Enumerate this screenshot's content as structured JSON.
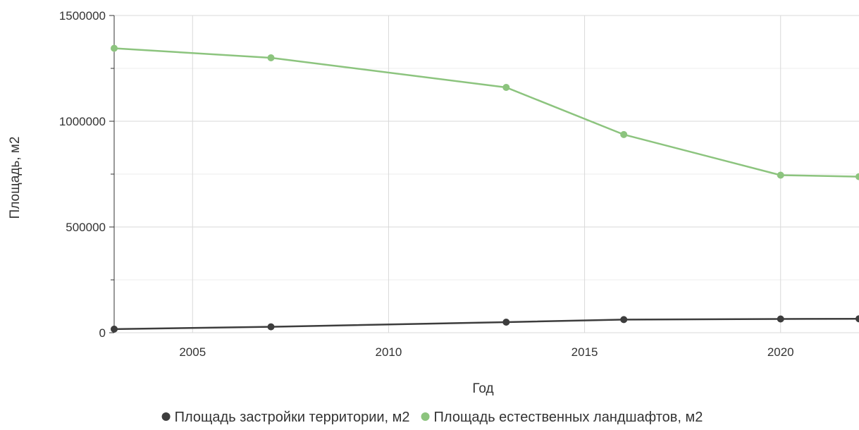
{
  "chart_data": {
    "type": "line",
    "xlabel": "Год",
    "ylabel": "Площадь, м2",
    "xlim": [
      2003,
      2022
    ],
    "ylim": [
      0,
      1500000
    ],
    "x_ticks": [
      2005,
      2010,
      2015,
      2020
    ],
    "y_ticks": [
      0,
      500000,
      1000000,
      1500000
    ],
    "x_tick_labels": [
      "2005",
      "2010",
      "2015",
      "2020"
    ],
    "y_tick_labels": [
      "0",
      "500000",
      "1000000",
      "1500000"
    ],
    "grid": true,
    "legend_position": "bottom",
    "series": [
      {
        "name": "Площадь застройки территории, м2",
        "color": "#3d3d3d",
        "x": [
          2003,
          2007,
          2013,
          2016,
          2020,
          2022
        ],
        "values": [
          17000,
          28000,
          50000,
          62000,
          65000,
          66000
        ]
      },
      {
        "name": "Площадь естественных ландшафтов, м2",
        "color": "#8cc47e",
        "x": [
          2003,
          2007,
          2013,
          2016,
          2020,
          2022
        ],
        "values": [
          1345000,
          1300000,
          1160000,
          937000,
          745000,
          738000
        ]
      }
    ]
  }
}
